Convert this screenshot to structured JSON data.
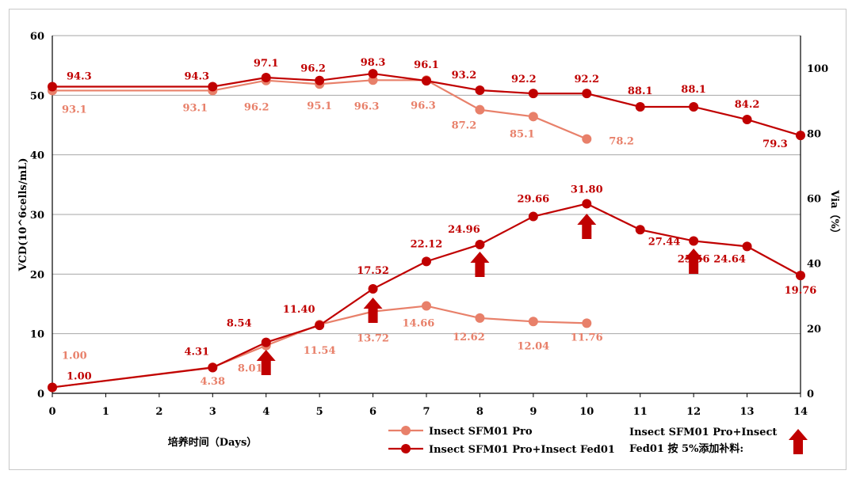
{
  "chart_data": {
    "type": "line",
    "xlabel": "培养时间（Days）",
    "ylabel": "VCD(10^6cells/mL)",
    "y2label": "Via（%）",
    "xlim": [
      0,
      14
    ],
    "ylim": [
      0,
      60
    ],
    "y2lim": [
      0,
      110
    ],
    "x_ticks": [
      0,
      1,
      2,
      3,
      4,
      5,
      6,
      7,
      8,
      9,
      10,
      11,
      12,
      13,
      14
    ],
    "y_ticks": [
      0,
      10,
      20,
      30,
      40,
      50,
      60
    ],
    "y2_ticks": [
      0,
      20,
      40,
      60,
      80,
      100
    ],
    "series": [
      {
        "name": "Insect SFM01 Pro",
        "color": "#e8806a",
        "vcd": {
          "x": [
            0,
            3,
            4,
            5,
            6,
            7,
            8,
            9,
            10
          ],
          "y": [
            1.0,
            4.38,
            8.01,
            11.54,
            13.72,
            14.66,
            12.62,
            12.04,
            11.76
          ],
          "labels": [
            "1.00",
            "4.38",
            "8.01",
            "11.54",
            "13.72",
            "14.66",
            "12.62",
            "12.04",
            "11.76"
          ]
        },
        "via": {
          "x": [
            0,
            3,
            4,
            5,
            6,
            7,
            8,
            9,
            10
          ],
          "y": [
            93.1,
            93.1,
            96.2,
            95.1,
            96.3,
            96.3,
            87.2,
            85.1,
            78.2
          ],
          "labels": [
            "93.1",
            "93.1",
            "96.2",
            "95.1",
            "96.3",
            "96.3",
            "87.2",
            "85.1",
            "78.2"
          ]
        }
      },
      {
        "name": "Insect SFM01 Pro+Insect Fed01",
        "color": "#c00000",
        "vcd": {
          "x": [
            0,
            3,
            4,
            5,
            6,
            7,
            8,
            9,
            10,
            11,
            12,
            13,
            14
          ],
          "y": [
            1.0,
            4.31,
            8.54,
            11.4,
            17.52,
            22.12,
            24.96,
            29.66,
            31.8,
            27.44,
            25.56,
            24.64,
            19.76
          ],
          "labels": [
            "1.00",
            "4.31",
            "8.54",
            "11.40",
            "17.52",
            "22.12",
            "24.96",
            "29.66",
            "31.80",
            "27.44",
            "25.56",
            "24.64",
            "19.76"
          ]
        },
        "via": {
          "x": [
            0,
            3,
            4,
            5,
            6,
            7,
            8,
            9,
            10,
            11,
            12,
            13,
            14
          ],
          "y": [
            94.3,
            94.3,
            97.1,
            96.2,
            98.3,
            96.1,
            93.2,
            92.2,
            92.2,
            88.1,
            88.1,
            84.2,
            79.3
          ],
          "labels": [
            "94.3",
            "94.3",
            "97.1",
            "96.2",
            "98.3",
            "96.1",
            "93.2",
            "92.2",
            "92.2",
            "88.1",
            "88.1",
            "84.2",
            "79.3"
          ]
        }
      }
    ],
    "feed_days": [
      4,
      6,
      8,
      10,
      12
    ],
    "feed_legend": "Insect SFM01 Pro+Insect Fed01 按 5%添加补料:",
    "feed_color": "#c00000"
  }
}
